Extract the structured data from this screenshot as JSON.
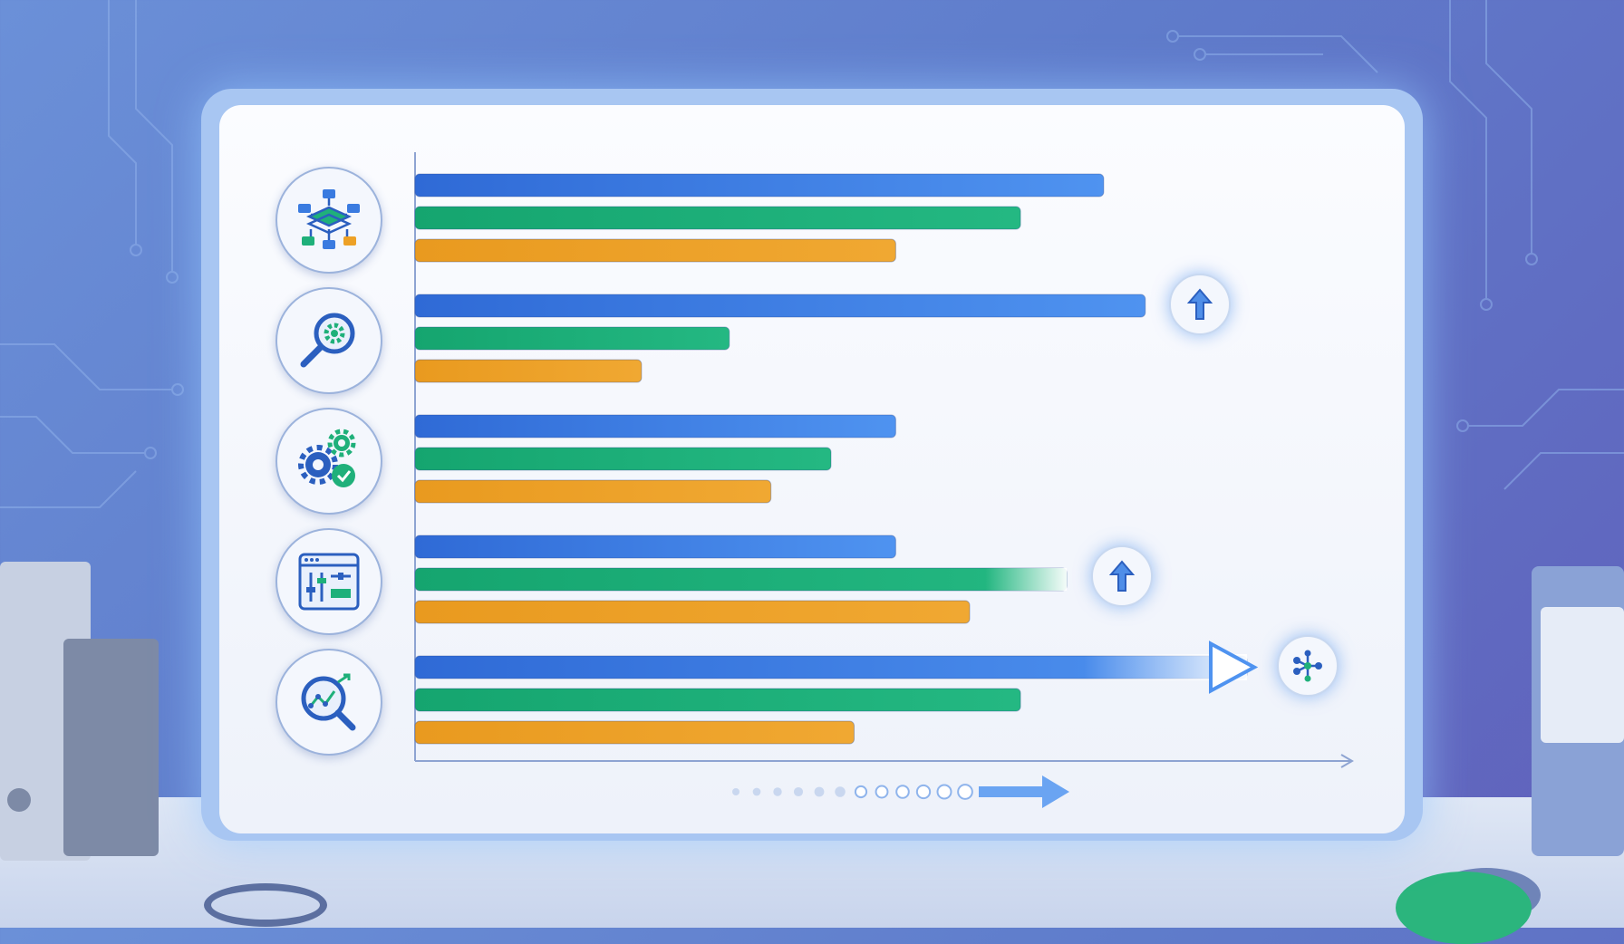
{
  "chart_data": {
    "type": "bar",
    "orientation": "horizontal",
    "title": "",
    "xlabel": "",
    "ylabel": "",
    "categories": [
      "structure-diagram-icon",
      "search-gear-icon",
      "gears-check-icon",
      "dashboard-sliders-icon",
      "analytics-search-icon"
    ],
    "series": [
      {
        "color": "#3a7be0",
        "values": [
          7.45,
          7.9,
          5.2,
          5.2,
          9.0
        ]
      },
      {
        "color": "#1fb07a",
        "values": [
          6.55,
          3.4,
          4.5,
          7.05,
          6.55
        ]
      },
      {
        "color": "#eda126",
        "values": [
          5.2,
          2.45,
          3.85,
          6.0,
          4.75
        ]
      }
    ],
    "xlim": [
      0,
      10
    ],
    "grid": false,
    "legend": "none",
    "highlights": [
      {
        "category_index": 1,
        "series_index": 0,
        "marker": "arrow-up-icon"
      },
      {
        "category_index": 3,
        "series_index": 1,
        "marker": "arrow-up-icon"
      },
      {
        "category_index": 4,
        "series_index": 0,
        "marker": "network-icon"
      }
    ]
  },
  "colors": {
    "background": "#6174c6",
    "board": "#f4f7fd",
    "axis": "#8ea4d2",
    "accent_blue": "#3a7be0",
    "accent_green": "#1fb07a",
    "accent_orange": "#eda126"
  },
  "icons": [
    "structure-diagram-icon",
    "search-gear-icon",
    "gears-check-icon",
    "dashboard-sliders-icon",
    "analytics-search-icon",
    "arrow-up-icon",
    "network-icon",
    "progress-arrow-icon"
  ]
}
